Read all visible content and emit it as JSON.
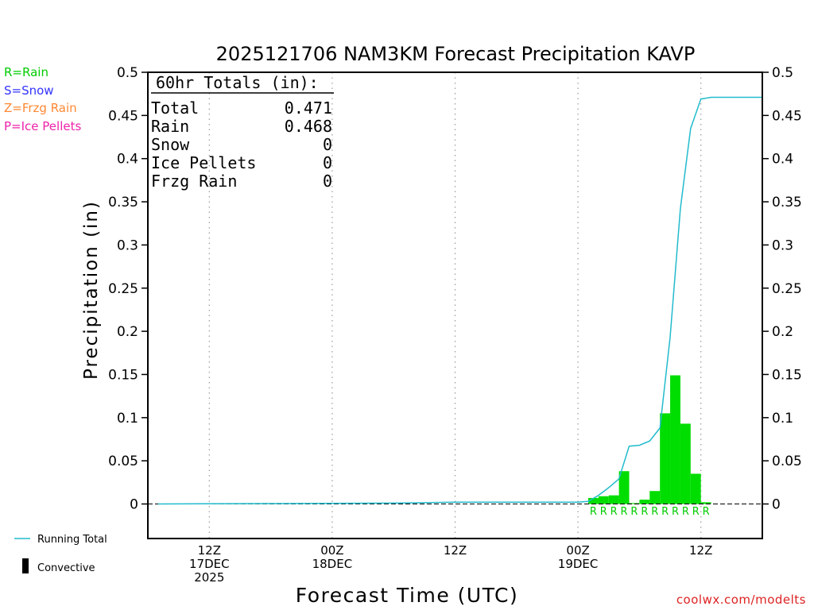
{
  "chart_data": {
    "type": "bar",
    "title": "2025121706 NAM3KM Forecast Precipitation KAVP",
    "xlabel": "Forecast Time (UTC)",
    "ylabel": "Precipitation (in)",
    "ylim": [
      -0.04,
      0.5
    ],
    "y_ticks": [
      "0.5",
      "0.45",
      "0.4",
      "0.35",
      "0.3",
      "0.25",
      "0.2",
      "0.15",
      "0.1",
      "0.05",
      "0"
    ],
    "xlim_hours": [
      -1,
      59
    ],
    "x_ticks": [
      {
        "hour": 5,
        "line1": "12Z",
        "line2": "17DEC",
        "line3": "2025"
      },
      {
        "hour": 17,
        "line1": "00Z",
        "line2": "18DEC",
        "line3": ""
      },
      {
        "hour": 29,
        "line1": "12Z",
        "line2": "",
        "line3": ""
      },
      {
        "hour": 41,
        "line1": "00Z",
        "line2": "19DEC",
        "line3": ""
      },
      {
        "hour": 53,
        "line1": "12Z",
        "line2": "",
        "line3": ""
      }
    ],
    "grid": "vertical-dotted",
    "legend": [
      {
        "label": "R=Rain",
        "color": "#00cc00"
      },
      {
        "label": "S=Snow",
        "color": "#3333ff"
      },
      {
        "label": "Z=Frzg Rain",
        "color": "#ff8833"
      },
      {
        "label": "P=Ice Pellets",
        "color": "#ee22aa"
      }
    ],
    "bottom_legend": {
      "running_total": "Running Total",
      "convective": "Convective"
    },
    "totals_box": {
      "heading": "60hr Totals (in):",
      "rows": [
        {
          "label": "Total",
          "value": "0.471"
        },
        {
          "label": "Rain",
          "value": "0.468"
        },
        {
          "label": "Snow",
          "value": "0"
        },
        {
          "label": "Ice Pellets",
          "value": "0"
        },
        {
          "label": "Frzg Rain",
          "value": "0"
        }
      ]
    },
    "series": [
      {
        "name": "Hourly Rain",
        "color": "#00dd00",
        "bars": [
          {
            "hour": 43,
            "value": 0.007
          },
          {
            "hour": 44,
            "value": 0.009
          },
          {
            "hour": 45,
            "value": 0.01
          },
          {
            "hour": 46,
            "value": 0.038
          },
          {
            "hour": 47,
            "value": 0.001
          },
          {
            "hour": 48,
            "value": 0.005
          },
          {
            "hour": 49,
            "value": 0.015
          },
          {
            "hour": 50,
            "value": 0.105
          },
          {
            "hour": 51,
            "value": 0.149
          },
          {
            "hour": 52,
            "value": 0.093
          },
          {
            "hour": 53,
            "value": 0.035
          },
          {
            "hour": 54,
            "value": 0.002
          }
        ]
      },
      {
        "name": "Running Total",
        "color": "#22bbcc",
        "points": [
          {
            "hour": 0,
            "value": 0
          },
          {
            "hour": 23,
            "value": 0.001
          },
          {
            "hour": 29,
            "value": 0.002
          },
          {
            "hour": 41,
            "value": 0.002
          },
          {
            "hour": 42,
            "value": 0.003
          },
          {
            "hour": 43,
            "value": 0.01
          },
          {
            "hour": 44,
            "value": 0.019
          },
          {
            "hour": 45,
            "value": 0.029
          },
          {
            "hour": 46,
            "value": 0.067
          },
          {
            "hour": 47,
            "value": 0.068
          },
          {
            "hour": 48,
            "value": 0.073
          },
          {
            "hour": 49,
            "value": 0.088
          },
          {
            "hour": 50,
            "value": 0.193
          },
          {
            "hour": 51,
            "value": 0.342
          },
          {
            "hour": 52,
            "value": 0.435
          },
          {
            "hour": 53,
            "value": 0.469
          },
          {
            "hour": 54,
            "value": 0.471
          },
          {
            "hour": 59,
            "value": 0.471
          }
        ]
      }
    ],
    "ptype_markers": {
      "letter": "R",
      "color": "#00cc00",
      "hours": [
        43,
        44,
        45,
        46,
        47,
        48,
        49,
        50,
        51,
        52,
        53,
        54
      ]
    }
  },
  "footer": {
    "credit": "coolwx.com/modelts"
  }
}
